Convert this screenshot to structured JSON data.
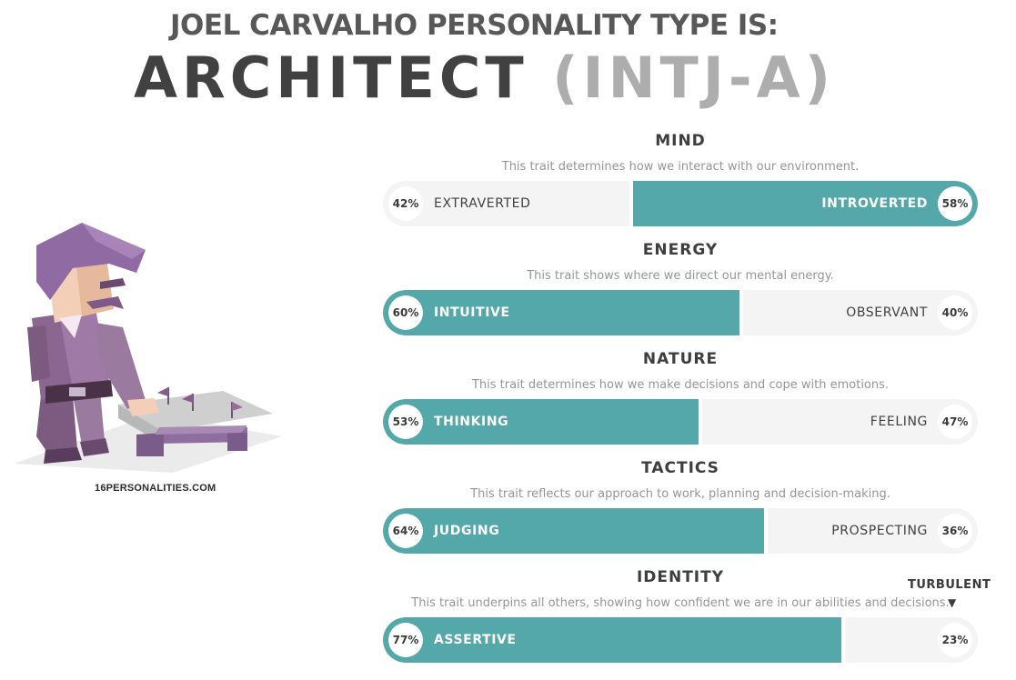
{
  "header": {
    "line1": "JOEL CARVALHO PERSONALITY TYPE IS:",
    "type_name": "ARCHITECT",
    "type_code": "(INTJ-A)"
  },
  "illustration": {
    "icon": "architect-character-illustration"
  },
  "site_label": "16PERSONALITIES.COM",
  "traits": [
    {
      "title": "MIND",
      "description": "This trait determines how we interact with our environment.",
      "left": {
        "label": "EXTRAVERTED",
        "percent": "42%",
        "value": 42
      },
      "right": {
        "label": "INTROVERTED",
        "percent": "58%",
        "value": 58
      },
      "dominant": "right"
    },
    {
      "title": "ENERGY",
      "description": "This trait shows where we direct our mental energy.",
      "left": {
        "label": "INTUITIVE",
        "percent": "60%",
        "value": 60
      },
      "right": {
        "label": "OBSERVANT",
        "percent": "40%",
        "value": 40
      },
      "dominant": "left"
    },
    {
      "title": "NATURE",
      "description": "This trait determines how we make decisions and cope with emotions.",
      "left": {
        "label": "THINKING",
        "percent": "53%",
        "value": 53
      },
      "right": {
        "label": "FEELING",
        "percent": "47%",
        "value": 47
      },
      "dominant": "left"
    },
    {
      "title": "TACTICS",
      "description": "This trait reflects our approach to work, planning and decision-making.",
      "left": {
        "label": "JUDGING",
        "percent": "64%",
        "value": 64
      },
      "right": {
        "label": "PROSPECTING",
        "percent": "36%",
        "value": 36
      },
      "dominant": "left"
    },
    {
      "title": "IDENTITY",
      "description": "This trait underpins all others, showing how confident we are in our abilities and decisions.",
      "left": {
        "label": "ASSERTIVE",
        "percent": "77%",
        "value": 77
      },
      "right": {
        "label": "",
        "percent": "23%",
        "value": 23
      },
      "dominant": "left"
    }
  ],
  "turbulent_marker": {
    "label": "TURBULENT",
    "arrow": "▼"
  },
  "colors": {
    "accent": "#54a8a9",
    "track": "#f4f4f4",
    "title_dark": "#414141",
    "code_gray": "#adadad"
  }
}
